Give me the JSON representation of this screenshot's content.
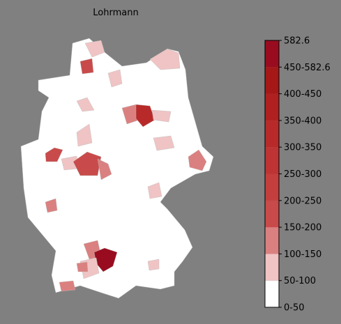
{
  "title": "Lohrmann",
  "colorbar": {
    "labels": [
      "0-50",
      "50-100",
      "100-150",
      "150-200",
      "200-250",
      "250-300",
      "300-350",
      "350-400",
      "400-450",
      "450-582.6",
      "582.6"
    ],
    "colors": [
      "#ffffff",
      "#f0c4c4",
      "#db8080",
      "#c94a4a",
      "#c43e3e",
      "#be3434",
      "#b82a2a",
      "#b02020",
      "#a61818",
      "#990c20"
    ]
  }
}
